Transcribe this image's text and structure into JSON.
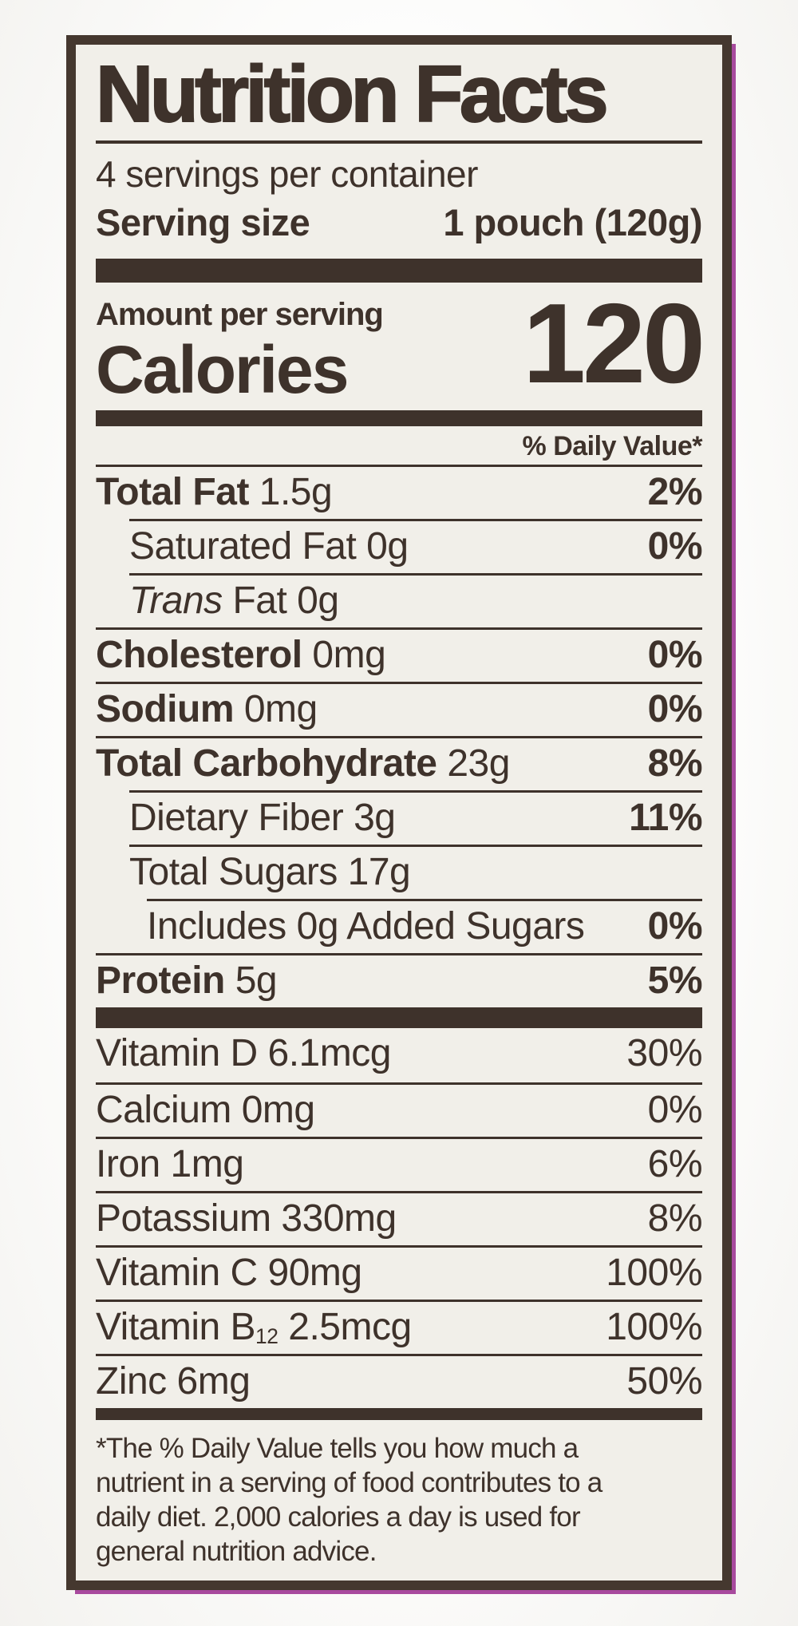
{
  "label": {
    "title": "Nutrition Facts",
    "servings_per_container": "4 servings per container",
    "serving_size_label": "Serving size",
    "serving_size_value": "1 pouch (120g)",
    "amount_per_serving": "Amount per serving",
    "calories_label": "Calories",
    "calories_value": "120",
    "daily_value_header": "% Daily Value*",
    "nutrients": [
      {
        "bold": "Total Fat",
        "text": " 1.5g",
        "dv": "2%"
      },
      {
        "text": "Saturated Fat 0g",
        "dv": "0%"
      },
      {
        "italic": "Trans",
        "text": " Fat 0g",
        "dv": ""
      },
      {
        "bold": "Cholesterol",
        "text": " 0mg",
        "dv": "0%"
      },
      {
        "bold": "Sodium",
        "text": " 0mg",
        "dv": "0%"
      },
      {
        "bold": "Total Carbohydrate",
        "text": " 23g",
        "dv": "8%"
      },
      {
        "text": "Dietary Fiber 3g",
        "dv": "11%"
      },
      {
        "text": "Total Sugars 17g",
        "dv": ""
      },
      {
        "text": "Includes 0g Added Sugars",
        "dv": "0%"
      },
      {
        "bold": "Protein",
        "text": " 5g",
        "dv": "5%"
      }
    ],
    "micronutrients": [
      {
        "name": "Vitamin D 6.1mcg",
        "dv": "30%"
      },
      {
        "name": "Calcium 0mg",
        "dv": "0%"
      },
      {
        "name": "Iron 1mg",
        "dv": "6%"
      },
      {
        "name": "Potassium 330mg",
        "dv": "8%"
      },
      {
        "name": "Vitamin C 90mg",
        "dv": "100%"
      },
      {
        "name_pre": "Vitamin B",
        "name_sub": "12",
        "name_post": " 2.5mcg",
        "dv": "100%"
      },
      {
        "name": "Zinc 6mg",
        "dv": "50%"
      }
    ],
    "footnote_lines": [
      "*The % Daily Value tells you how much a",
      "nutrient in a serving of food contributes to a",
      "daily diet. 2,000 calories a day is used for",
      "general nutrition advice."
    ]
  }
}
